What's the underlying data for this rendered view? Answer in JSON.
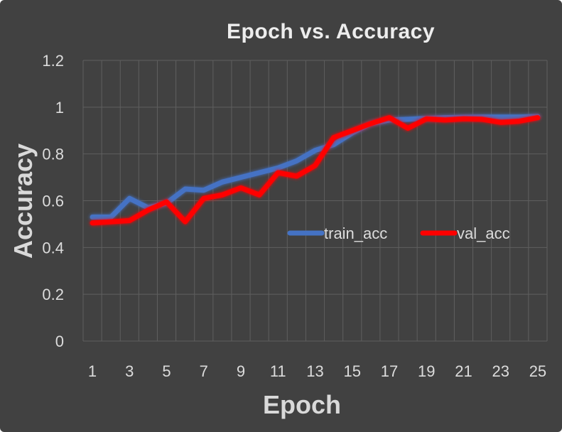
{
  "chart_data": {
    "type": "line",
    "title": "Epoch vs. Accuracy",
    "xlabel": "Epoch",
    "ylabel": "Accuracy",
    "x": [
      1,
      2,
      3,
      4,
      5,
      6,
      7,
      8,
      9,
      10,
      11,
      12,
      13,
      14,
      15,
      16,
      17,
      18,
      19,
      20,
      21,
      22,
      23,
      24,
      25
    ],
    "x_tick_labels": [
      "1",
      "3",
      "5",
      "7",
      "9",
      "11",
      "13",
      "15",
      "17",
      "19",
      "21",
      "23",
      "25"
    ],
    "x_tick_values": [
      1,
      3,
      5,
      7,
      9,
      11,
      13,
      15,
      17,
      19,
      21,
      23,
      25
    ],
    "ylim": [
      0,
      1.2
    ],
    "y_ticks": [
      0,
      0.2,
      0.4,
      0.6,
      0.8,
      1,
      1.2
    ],
    "y_tick_labels": [
      "0",
      "0.2",
      "0.4",
      "0.6",
      "0.8",
      "1",
      "1.2"
    ],
    "grid": true,
    "legend_position": "center-right",
    "series": [
      {
        "name": "train_acc",
        "color": "#4472c4",
        "values": [
          0.53,
          0.53,
          0.61,
          0.57,
          0.59,
          0.65,
          0.645,
          0.68,
          0.7,
          0.72,
          0.74,
          0.77,
          0.815,
          0.84,
          0.89,
          0.93,
          0.945,
          0.948,
          0.952,
          0.955,
          0.957,
          0.958,
          0.958,
          0.958,
          0.96
        ]
      },
      {
        "name": "val_acc",
        "color": "#ff0000",
        "values": [
          0.505,
          0.51,
          0.515,
          0.56,
          0.595,
          0.51,
          0.61,
          0.625,
          0.655,
          0.625,
          0.72,
          0.705,
          0.75,
          0.87,
          0.9,
          0.93,
          0.955,
          0.91,
          0.95,
          0.945,
          0.95,
          0.948,
          0.935,
          0.94,
          0.955
        ]
      }
    ]
  }
}
